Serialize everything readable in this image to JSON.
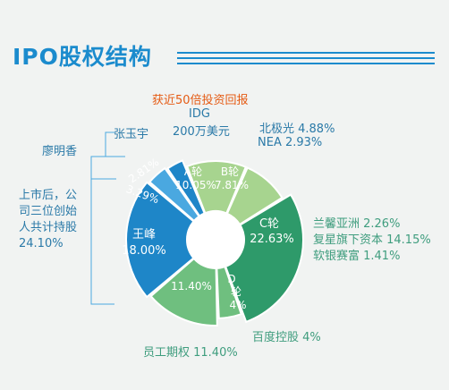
{
  "title": "IPO股权结构",
  "colors": {
    "title": "#1b8bcd",
    "founders": "#1e86c8",
    "founders_light": "#4aa8e0",
    "light_green": "#a7d48f",
    "mid_green": "#6fbf7f",
    "dark_green": "#2e9a6a",
    "background": "#f1f3f2"
  },
  "labels": {
    "idg_note": "获近50倍投资回报",
    "idg_line1": "IDG",
    "idg_line2": "200万美元",
    "nea_line1": "北极光 4.88%",
    "nea_line2": "NEA  2.93%",
    "zhang": "张玉宇",
    "liao": "廖明香",
    "founders_line1": "上市后，公",
    "founders_line2": "司三位创始",
    "founders_line3": "人共计持股",
    "founders_line4": "24.10%",
    "c_note1": "兰馨亚洲  2.26%",
    "c_note2": "复星旗下资本 14.15%",
    "c_note3": "软银赛富  1.41%",
    "baidu": "百度控股 4%",
    "esop": "员工期权 11.40%"
  },
  "slice_labels": {
    "a_line1": "A轮",
    "a_line2": "10.05%",
    "b_line1": "B轮",
    "b_line2": "7.81%",
    "c_line1": "C轮",
    "c_line2": "22.63%",
    "d_line1": "D",
    "d_line2": "轮",
    "d_line3": "4%",
    "esop": "11.40%",
    "wang_line1": "王峰",
    "wang_line2": "18.00%",
    "liao": "3.29%",
    "zhang": "2.81%"
  },
  "chart_data": {
    "type": "pie",
    "title": "IPO股权结构",
    "slices": [
      {
        "label": "A轮",
        "value": 10.05,
        "color": "#a7d48f"
      },
      {
        "label": "B轮",
        "value": 7.81,
        "color": "#a7d48f"
      },
      {
        "label": "C轮",
        "value": 22.63,
        "color": "#2e9a6a"
      },
      {
        "label": "D轮",
        "value": 4,
        "color": "#6fbf7f"
      },
      {
        "label": "员工期权",
        "value": 11.4,
        "color": "#6fbf7f"
      },
      {
        "label": "王峰",
        "value": 18.0,
        "color": "#1e86c8"
      },
      {
        "label": "廖明香",
        "value": 3.29,
        "color": "#4aa8e0"
      },
      {
        "label": "张玉宇",
        "value": 2.81,
        "color": "#1e86c8"
      }
    ]
  }
}
